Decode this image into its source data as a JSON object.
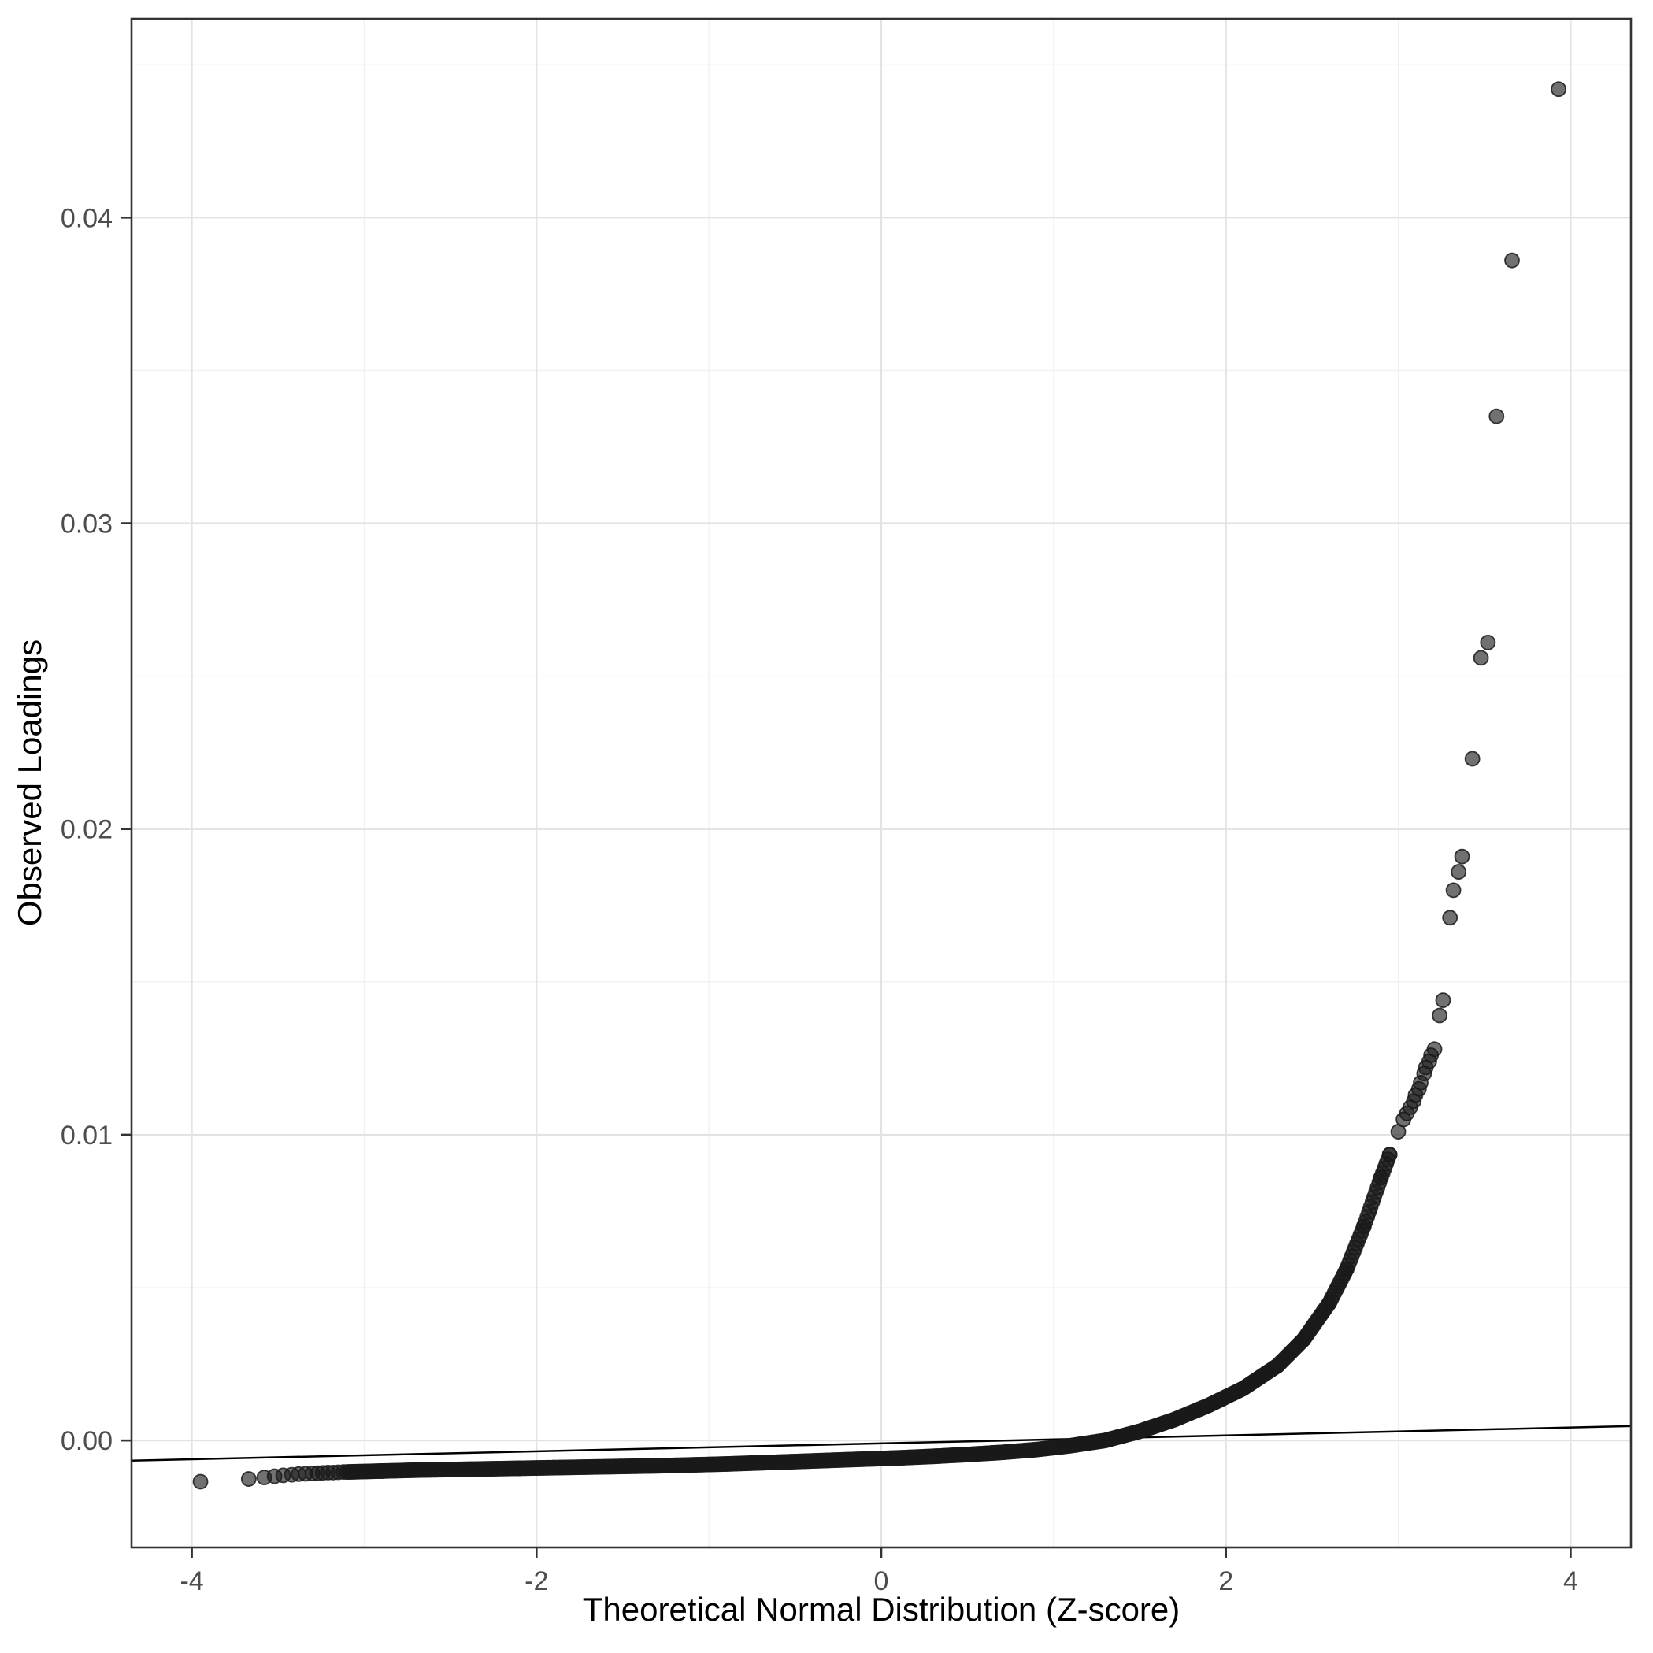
{
  "figure": {
    "background": "#ffffff",
    "panel_background": "#ffffff",
    "panel_border_color": "#333333",
    "grid_major_color": "#e3e3e3",
    "grid_minor_color": "#f0f0f0",
    "tick_color": "#333333",
    "tick_label_color": "#4d4d4d",
    "axis_title_color": "#000000",
    "point_color": "#1a1a1a",
    "point_opacity": 0.62,
    "reference_line_color": "#000000"
  },
  "chart_data": {
    "type": "scatter",
    "title": "",
    "subtitle": "",
    "xlabel": "Theoretical Normal Distribution (Z-score)",
    "ylabel": "Observed Loadings",
    "legend": "none",
    "grid": true,
    "xlim": [
      -4.35,
      4.35
    ],
    "ylim": [
      -0.0035,
      0.0465
    ],
    "x_ticks": {
      "values": [
        -4,
        -2,
        0,
        2,
        4
      ],
      "labels": [
        "-4",
        "-2",
        "0",
        "2",
        "4"
      ]
    },
    "x_minor_gridlines": [
      -3,
      -1,
      1,
      3
    ],
    "y_ticks": {
      "values": [
        0.0,
        0.01,
        0.02,
        0.03,
        0.04
      ],
      "labels": [
        "0.00",
        "0.01",
        "0.02",
        "0.03",
        "0.04"
      ]
    },
    "y_minor_gridlines": [
      0.005,
      0.015,
      0.025,
      0.035,
      0.045
    ],
    "reference_line": {
      "x1": -4.35,
      "y1": -0.00066,
      "x2": 4.35,
      "y2": 0.00047
    },
    "dense_band_curve_note": "heavily overplotted points forming a solid band along this curve",
    "dense_band_curve": [
      [
        -3.1,
        -0.00103
      ],
      [
        -2.9,
        -0.001
      ],
      [
        -2.7,
        -0.00097
      ],
      [
        -2.5,
        -0.00095
      ],
      [
        -2.3,
        -0.00093
      ],
      [
        -2.1,
        -0.00091
      ],
      [
        -1.9,
        -0.00089
      ],
      [
        -1.7,
        -0.00087
      ],
      [
        -1.5,
        -0.00085
      ],
      [
        -1.3,
        -0.00083
      ],
      [
        -1.1,
        -0.0008
      ],
      [
        -0.9,
        -0.00077
      ],
      [
        -0.7,
        -0.00073
      ],
      [
        -0.5,
        -0.00069
      ],
      [
        -0.3,
        -0.00065
      ],
      [
        -0.1,
        -0.00061
      ],
      [
        0.1,
        -0.00057
      ],
      [
        0.3,
        -0.00052
      ],
      [
        0.5,
        -0.00046
      ],
      [
        0.7,
        -0.00039
      ],
      [
        0.9,
        -0.0003
      ],
      [
        1.1,
        -0.00017
      ],
      [
        1.3,
        0.0
      ],
      [
        1.5,
        0.0003
      ],
      [
        1.7,
        0.00068
      ],
      [
        1.9,
        0.00115
      ],
      [
        2.1,
        0.0017
      ],
      [
        2.3,
        0.00245
      ],
      [
        2.45,
        0.0033
      ],
      [
        2.6,
        0.0045
      ],
      [
        2.7,
        0.0056
      ],
      [
        2.8,
        0.007
      ],
      [
        2.9,
        0.0086
      ],
      [
        2.95,
        0.00935
      ]
    ],
    "points": [
      [
        -3.95,
        -0.00135
      ],
      [
        -3.67,
        -0.00126
      ],
      [
        -3.58,
        -0.00121
      ],
      [
        -3.52,
        -0.00117
      ],
      [
        -3.47,
        -0.00114
      ],
      [
        -3.42,
        -0.00112
      ],
      [
        -3.38,
        -0.0011
      ],
      [
        -3.34,
        -0.00109
      ],
      [
        -3.3,
        -0.00108
      ],
      [
        -3.27,
        -0.00107
      ],
      [
        -3.24,
        -0.00106
      ],
      [
        -3.21,
        -0.00105
      ],
      [
        -3.18,
        -0.00105
      ],
      [
        -3.15,
        -0.00104
      ],
      [
        -3.12,
        -0.00103
      ],
      [
        3.0,
        0.0101
      ],
      [
        3.03,
        0.0105
      ],
      [
        3.05,
        0.0107
      ],
      [
        3.07,
        0.0109
      ],
      [
        3.09,
        0.0111
      ],
      [
        3.1,
        0.0113
      ],
      [
        3.12,
        0.0115
      ],
      [
        3.13,
        0.0117
      ],
      [
        3.15,
        0.012
      ],
      [
        3.16,
        0.0122
      ],
      [
        3.18,
        0.0124
      ],
      [
        3.19,
        0.0126
      ],
      [
        3.21,
        0.0128
      ],
      [
        3.24,
        0.0139
      ],
      [
        3.26,
        0.0144
      ],
      [
        3.3,
        0.0171
      ],
      [
        3.32,
        0.018
      ],
      [
        3.35,
        0.0186
      ],
      [
        3.37,
        0.0191
      ],
      [
        3.43,
        0.0223
      ],
      [
        3.48,
        0.0256
      ],
      [
        3.52,
        0.0261
      ],
      [
        3.57,
        0.0335
      ],
      [
        3.66,
        0.0386
      ],
      [
        3.93,
        0.0442
      ]
    ]
  }
}
